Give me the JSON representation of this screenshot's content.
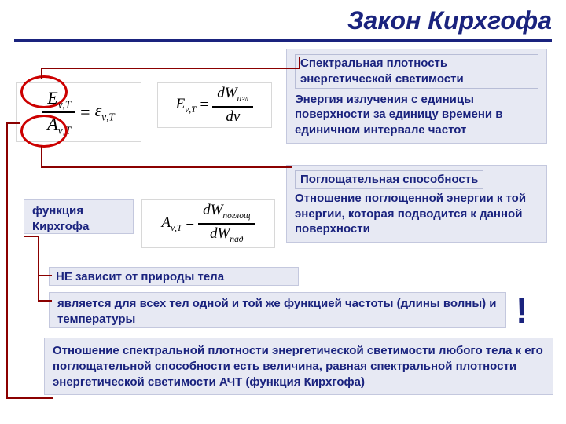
{
  "title": "Закон Кирхгофа",
  "colors": {
    "navy": "#1a237e",
    "callout_bg": "#e7e9f3",
    "callout_border": "#c4c8de",
    "connector": "#8b0000",
    "circle": "#c00"
  },
  "formulas": {
    "ratio": {
      "E_sym": "E",
      "E_sub": "ν,T",
      "A_sym": "A",
      "A_sub": "ν,T",
      "eq": "=",
      "eps": "ε",
      "eps_sub": "ν,T"
    },
    "E_def": {
      "lhs_sym": "E",
      "lhs_sub": "ν,T",
      "num": "dW",
      "num_sub": "изл",
      "den": "dν"
    },
    "A_def": {
      "lhs_sym": "A",
      "lhs_sub": "ν,T",
      "num": "dW",
      "num_sub": "поглощ",
      "den": "dW",
      "den_sub": "пад"
    }
  },
  "callouts": {
    "spectral_head": "Спектральная плотность энергетической светимости",
    "spectral_body": "Энергия излучения с единицы поверхности за единицу времени в единичном интервале частот",
    "absorb_head": "Поглощательная способность",
    "absorb_body": "Отношение поглощенной энергии к той энергии, которая подводится к данной поверхности",
    "kirch_func": "функция Кирхгофа",
    "nezavist": "НЕ зависит от природы тела",
    "same_func": "является для всех тел одной и той же функцией частоты (длины волны) и температуры",
    "ratio_text": "Отношение спектральной плотности энергетической светимости любого тела к его поглощательной способности есть величина, равная спектральной плотности энергетической светимости АЧТ (функция Кирхгофа)",
    "exclaim": "!"
  }
}
